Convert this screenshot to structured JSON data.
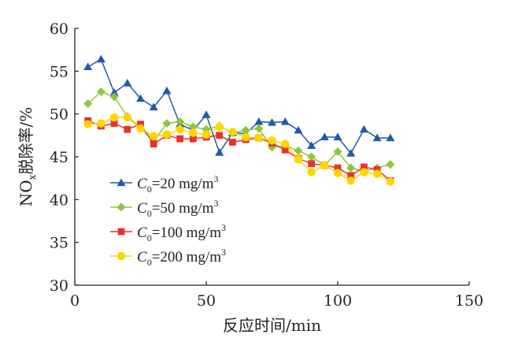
{
  "chart_data": {
    "type": "line",
    "xlabel": "反应时间/min",
    "ylabel_main": "NO",
    "ylabel_sub": "x",
    "ylabel_rest": "脱除率/%",
    "xlim": [
      0,
      150
    ],
    "ylim": [
      30,
      60
    ],
    "xticks": [
      "0",
      "50",
      "100",
      "150"
    ],
    "yticks": [
      "30",
      "35",
      "40",
      "45",
      "50",
      "55",
      "60"
    ],
    "grid": false,
    "legend_position": "bottom-left",
    "x": [
      5,
      10,
      15,
      20,
      25,
      30,
      35,
      40,
      45,
      50,
      55,
      60,
      65,
      70,
      75,
      80,
      85,
      90,
      95,
      100,
      105,
      110,
      115,
      120
    ],
    "series": [
      {
        "legend_pre": "C",
        "legend_sub": "0",
        "legend_mid": "=20 mg/m",
        "legend_sup": "3",
        "color": "#1f5aa6",
        "marker": "triangle",
        "values": [
          55.5,
          56.4,
          52.5,
          53.6,
          51.8,
          50.8,
          52.7,
          48.8,
          48.1,
          49.9,
          45.5,
          47.8,
          47.7,
          49.1,
          49.0,
          49.1,
          48.1,
          46.3,
          47.3,
          47.3,
          45.4,
          48.2,
          47.2,
          47.2
        ]
      },
      {
        "legend_pre": "C",
        "legend_sub": "0",
        "legend_mid": "=50 mg/m",
        "legend_sup": "3",
        "color": "#8dc63f",
        "marker": "diamond",
        "values": [
          51.2,
          52.6,
          52.0,
          49.7,
          48.4,
          46.8,
          48.9,
          49.1,
          48.5,
          48.2,
          48.6,
          47.8,
          48.1,
          48.3,
          46.1,
          46.3,
          45.7,
          45.0,
          44.0,
          45.6,
          43.7,
          43.3,
          43.7,
          44.1
        ]
      },
      {
        "legend_pre": "C",
        "legend_sub": "0",
        "legend_mid": "=100 mg/m",
        "legend_sup": "3",
        "color": "#e8322c",
        "marker": "square",
        "values": [
          49.2,
          48.6,
          48.9,
          48.2,
          48.8,
          46.5,
          47.5,
          47.1,
          47.1,
          47.3,
          47.5,
          46.7,
          47.0,
          47.2,
          46.6,
          45.8,
          44.8,
          44.2,
          44.0,
          43.7,
          42.8,
          43.8,
          43.5,
          42.2
        ]
      },
      {
        "legend_pre": "C",
        "legend_sub": "0",
        "legend_mid": "=200 mg/m",
        "legend_sup": "3",
        "color": "#ffd600",
        "marker": "circle",
        "values": [
          48.8,
          48.9,
          49.6,
          49.6,
          48.3,
          47.4,
          47.6,
          48.2,
          47.8,
          47.6,
          48.5,
          47.9,
          47.3,
          47.2,
          46.9,
          46.5,
          44.7,
          43.2,
          44.0,
          43.1,
          42.2,
          43.2,
          43.0,
          42.1
        ]
      }
    ]
  }
}
